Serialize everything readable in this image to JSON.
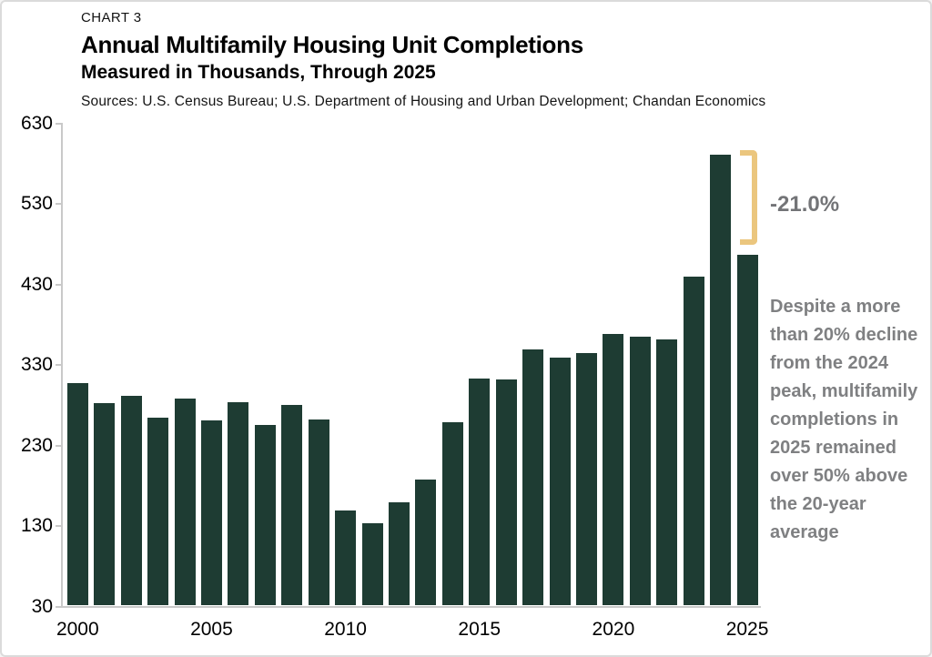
{
  "header": {
    "chart_label": "CHART 3",
    "title": "Annual Multifamily Housing Unit Completions",
    "subtitle": "Measured in Thousands, Through 2025",
    "sources": "Sources: U.S. Census Bureau; U.S. Department of Housing and Urban Development; Chandan Economics"
  },
  "annotations": {
    "pct_change_label": "-21.0%",
    "note": "Despite a more than 20% decline from the 2024 peak, multifamily completions in 2025 remained over 50% above the 20-year average",
    "bracket_color": "#ebc67e",
    "note_color": "#7f8082"
  },
  "chart_data": {
    "type": "bar",
    "title": "Annual Multifamily Housing Unit Completions",
    "subtitle": "Measured in Thousands, Through 2025",
    "categories": [
      2000,
      2001,
      2002,
      2003,
      2004,
      2005,
      2006,
      2007,
      2008,
      2009,
      2010,
      2011,
      2012,
      2013,
      2014,
      2015,
      2016,
      2017,
      2018,
      2019,
      2020,
      2021,
      2022,
      2023,
      2024,
      2025
    ],
    "values": [
      306,
      281,
      290,
      263,
      287,
      260,
      283,
      254,
      279,
      261,
      148,
      132,
      158,
      187,
      258,
      312,
      311,
      348,
      338,
      343,
      367,
      364,
      360,
      439,
      590,
      466
    ],
    "xlabel": "",
    "ylabel": "",
    "ylim": [
      30,
      630
    ],
    "yticks": [
      30,
      130,
      230,
      330,
      430,
      530,
      630
    ],
    "xticks": [
      2000,
      2005,
      2010,
      2015,
      2020,
      2025
    ],
    "grid": false,
    "legend_position": "none",
    "bar_color": "#1e3c33",
    "axis_color": "#c9c9c9"
  }
}
